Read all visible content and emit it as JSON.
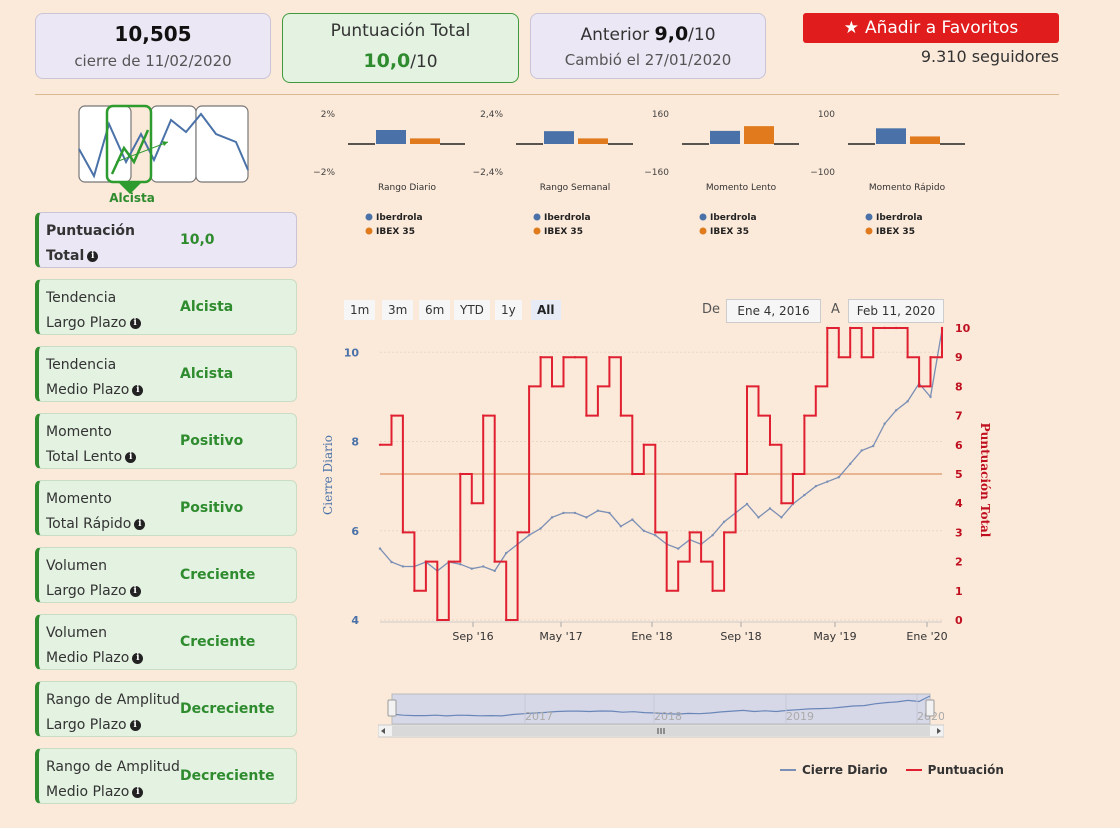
{
  "summary": {
    "close_value": "10,505",
    "close_label": "cierre de 11/02/2020",
    "total_label": "Puntuación Total",
    "total_value": "10,0",
    "total_denominator": "/10",
    "previous_label": "Anterior",
    "previous_value": "9,0",
    "previous_denominator": "/10",
    "changed_label": "Cambió el 27/01/2020"
  },
  "favorites": {
    "button_label": "Añadir a Favoritos",
    "followers": "9.310 seguidores"
  },
  "trend_widget": {
    "label": "Alcista"
  },
  "metrics": [
    {
      "line1": "Puntuación",
      "line2": "Total",
      "value": "10,0",
      "bold": true
    },
    {
      "line1": "Tendencia",
      "line2": "Largo Plazo",
      "value": "Alcista"
    },
    {
      "line1": "Tendencia",
      "line2": "Medio Plazo",
      "value": "Alcista"
    },
    {
      "line1": "Momento",
      "line2": "Total Lento",
      "value": "Positivo"
    },
    {
      "line1": "Momento",
      "line2": "Total Rápido",
      "value": "Positivo"
    },
    {
      "line1": "Volumen",
      "line2": "Largo Plazo",
      "value": "Creciente"
    },
    {
      "line1": "Volumen",
      "line2": "Medio Plazo",
      "value": "Creciente"
    },
    {
      "line1": "Rango de Amplitud",
      "line2": "Largo Plazo",
      "value": "Decreciente"
    },
    {
      "line1": "Rango de Amplitud",
      "line2": "Medio Plazo",
      "value": "Decreciente"
    }
  ],
  "range_selector": {
    "buttons": [
      "1m",
      "3m",
      "6m",
      "YTD",
      "1y",
      "All"
    ],
    "selected": "All",
    "from_label": "De",
    "from_value": "Ene 4, 2016",
    "to_label": "A",
    "to_value": "Feb 11, 2020"
  },
  "colors": {
    "iberdrola": "#4a72a8",
    "ibex": "#e07a1c",
    "close_line": "#7a8fb5",
    "score_line": "#e02030",
    "accent_green": "#2e8b2e",
    "fav_red": "#e01c1c"
  },
  "chart_data": [
    {
      "type": "bar",
      "title": "Rango Diario",
      "categories": [
        "Iberdrola",
        "IBEX 35"
      ],
      "values": [
        1.0,
        0.4
      ],
      "ylim": [
        -2,
        2
      ],
      "tick_labels": [
        "2%",
        "−2%"
      ]
    },
    {
      "type": "bar",
      "title": "Rango Semanal",
      "categories": [
        "Iberdrola",
        "IBEX 35"
      ],
      "values": [
        1.1,
        0.48
      ],
      "ylim": [
        -2.4,
        2.4
      ],
      "tick_labels": [
        "2,4%",
        "−2,4%"
      ]
    },
    {
      "type": "bar",
      "title": "Momento Lento",
      "categories": [
        "Iberdrola",
        "IBEX 35"
      ],
      "values": [
        75,
        102
      ],
      "ylim": [
        -160,
        160
      ],
      "tick_labels": [
        "160",
        "−160"
      ]
    },
    {
      "type": "bar",
      "title": "Momento Rápido",
      "categories": [
        "Iberdrola",
        "IBEX 35"
      ],
      "values": [
        56,
        27
      ],
      "ylim": [
        -100,
        100
      ],
      "tick_labels": [
        "100",
        "−100"
      ]
    },
    {
      "type": "line",
      "x_tick_labels": [
        "Sep '16",
        "May '17",
        "Ene '18",
        "Sep '18",
        "May '19",
        "Ene '20"
      ],
      "xlim": [
        "2016-01-04",
        "2020-02-11"
      ],
      "ylabel": "Cierre Diario",
      "ylabel_right": "Puntuación Total",
      "ylim": [
        4,
        10.5
      ],
      "ylim_right": [
        0,
        10
      ],
      "y_ticks": [
        4,
        6,
        8,
        10
      ],
      "y_ticks_right": [
        0,
        1,
        2,
        3,
        4,
        5,
        6,
        7,
        8,
        9,
        10
      ],
      "reference_line_right": 5,
      "series": [
        {
          "name": "Cierre Diario",
          "x": [
            "2016-01",
            "2016-02",
            "2016-03",
            "2016-04",
            "2016-05",
            "2016-06",
            "2016-07",
            "2016-08",
            "2016-09",
            "2016-10",
            "2016-11",
            "2016-12",
            "2017-01",
            "2017-02",
            "2017-03",
            "2017-04",
            "2017-05",
            "2017-06",
            "2017-07",
            "2017-08",
            "2017-09",
            "2017-10",
            "2017-11",
            "2017-12",
            "2018-01",
            "2018-02",
            "2018-03",
            "2018-04",
            "2018-05",
            "2018-06",
            "2018-07",
            "2018-08",
            "2018-09",
            "2018-10",
            "2018-11",
            "2018-12",
            "2019-01",
            "2019-02",
            "2019-03",
            "2019-04",
            "2019-05",
            "2019-06",
            "2019-07",
            "2019-08",
            "2019-09",
            "2019-10",
            "2019-11",
            "2019-12",
            "2020-01",
            "2020-02"
          ],
          "values": [
            5.6,
            5.3,
            5.2,
            5.2,
            5.3,
            5.1,
            5.3,
            5.25,
            5.15,
            5.2,
            5.1,
            5.5,
            5.7,
            5.9,
            6.05,
            6.3,
            6.4,
            6.4,
            6.3,
            6.45,
            6.4,
            6.1,
            6.25,
            6.0,
            5.9,
            5.7,
            5.6,
            5.8,
            5.7,
            5.9,
            6.2,
            6.4,
            6.6,
            6.3,
            6.5,
            6.3,
            6.6,
            6.8,
            7.0,
            7.1,
            7.2,
            7.5,
            7.8,
            7.9,
            8.4,
            8.7,
            8.9,
            9.3,
            9.0,
            10.5
          ]
        },
        {
          "name": "Puntuación",
          "x": [
            "2016-01",
            "2016-02",
            "2016-03",
            "2016-04",
            "2016-05",
            "2016-06",
            "2016-07",
            "2016-08",
            "2016-09",
            "2016-10",
            "2016-11",
            "2016-12",
            "2017-01",
            "2017-02",
            "2017-03",
            "2017-04",
            "2017-05",
            "2017-06",
            "2017-07",
            "2017-08",
            "2017-09",
            "2017-10",
            "2017-11",
            "2017-12",
            "2018-01",
            "2018-02",
            "2018-03",
            "2018-04",
            "2018-05",
            "2018-06",
            "2018-07",
            "2018-08",
            "2018-09",
            "2018-10",
            "2018-11",
            "2018-12",
            "2019-01",
            "2019-02",
            "2019-03",
            "2019-04",
            "2019-05",
            "2019-06",
            "2019-07",
            "2019-08",
            "2019-09",
            "2019-10",
            "2019-11",
            "2019-12",
            "2020-01",
            "2020-02"
          ],
          "values": [
            6,
            7,
            3,
            1,
            2,
            0,
            2,
            5,
            4,
            7,
            2,
            0,
            3,
            8,
            9,
            8,
            9,
            9,
            7,
            8,
            9,
            7,
            5,
            6,
            3,
            1,
            2,
            3,
            2,
            1,
            3,
            5,
            8,
            7,
            6,
            4,
            5,
            7,
            8,
            10,
            9,
            10,
            9,
            10,
            10,
            10,
            9,
            8,
            9,
            10
          ]
        }
      ]
    }
  ],
  "navigator": {
    "year_labels": [
      "2017",
      "2018",
      "2019",
      "2020"
    ]
  },
  "legend": {
    "series_1": "Cierre Diario",
    "series_2": "Puntuación"
  },
  "mini_legend": {
    "iberdrola": "Iberdrola",
    "ibex": "IBEX 35"
  }
}
